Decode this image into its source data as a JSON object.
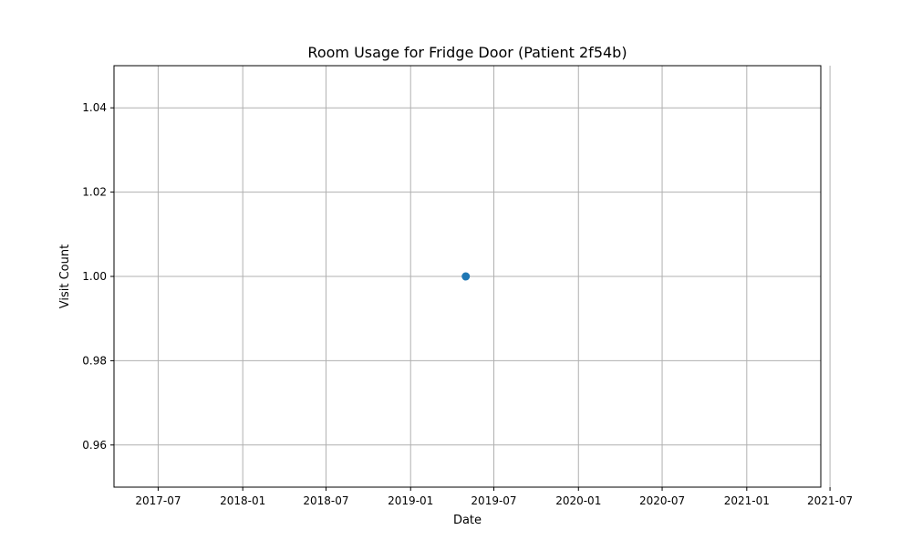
{
  "chart_data": {
    "type": "scatter",
    "title": "Room Usage for Fridge Door (Patient 2f54b)",
    "xlabel": "Date",
    "ylabel": "Visit Count",
    "x_type": "date",
    "xlim": [
      "2017-03-27",
      "2021-06-11"
    ],
    "ylim": [
      0.95,
      1.05
    ],
    "grid": true,
    "legend": "none",
    "series": [
      {
        "color": "#1f77b4",
        "points": [
          {
            "x": "2019-05-01",
            "y": 1.0
          }
        ]
      }
    ],
    "x_ticks": [
      {
        "value": "2017-07-01",
        "label": "2017-07"
      },
      {
        "value": "2018-01-01",
        "label": "2018-01"
      },
      {
        "value": "2018-07-01",
        "label": "2018-07"
      },
      {
        "value": "2019-01-01",
        "label": "2019-01"
      },
      {
        "value": "2019-07-01",
        "label": "2019-07"
      },
      {
        "value": "2020-01-01",
        "label": "2020-01"
      },
      {
        "value": "2020-07-01",
        "label": "2020-07"
      },
      {
        "value": "2021-01-01",
        "label": "2021-01"
      },
      {
        "value": "2021-07-01",
        "label": "2021-07"
      }
    ],
    "y_ticks": [
      {
        "value": 0.96,
        "label": "0.96"
      },
      {
        "value": 0.98,
        "label": "0.98"
      },
      {
        "value": 1.0,
        "label": "1.00"
      },
      {
        "value": 1.02,
        "label": "1.02"
      },
      {
        "value": 1.04,
        "label": "1.04"
      }
    ],
    "colors": {
      "grid": "#b0b0b0",
      "axis": "#000000"
    }
  }
}
